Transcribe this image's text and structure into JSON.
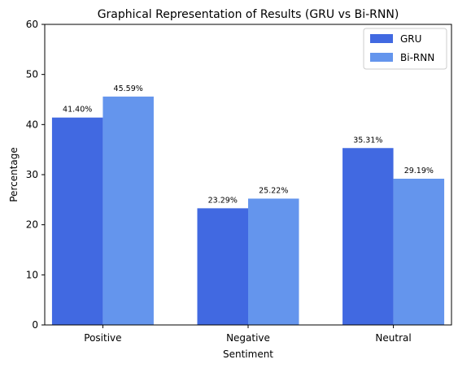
{
  "chart_data": {
    "type": "bar",
    "title": "Graphical Representation of Results (GRU vs Bi-RNN)",
    "xlabel": "Sentiment",
    "ylabel": "Percentage",
    "categories": [
      "Positive",
      "Negative",
      "Neutral"
    ],
    "ylim": [
      0,
      60
    ],
    "yticks": [
      0,
      10,
      20,
      30,
      40,
      50,
      60
    ],
    "grid": false,
    "legend_position": "top-right",
    "series": [
      {
        "name": "GRU",
        "color": "#4169E1",
        "values": [
          41.4,
          23.29,
          35.31
        ],
        "data_labels": [
          "41.40%",
          "23.29%",
          "35.31%"
        ]
      },
      {
        "name": "Bi-RNN",
        "color": "#6495ED",
        "values": [
          45.59,
          25.22,
          29.19
        ],
        "data_labels": [
          "45.59%",
          "25.22%",
          "29.19%"
        ]
      }
    ]
  }
}
